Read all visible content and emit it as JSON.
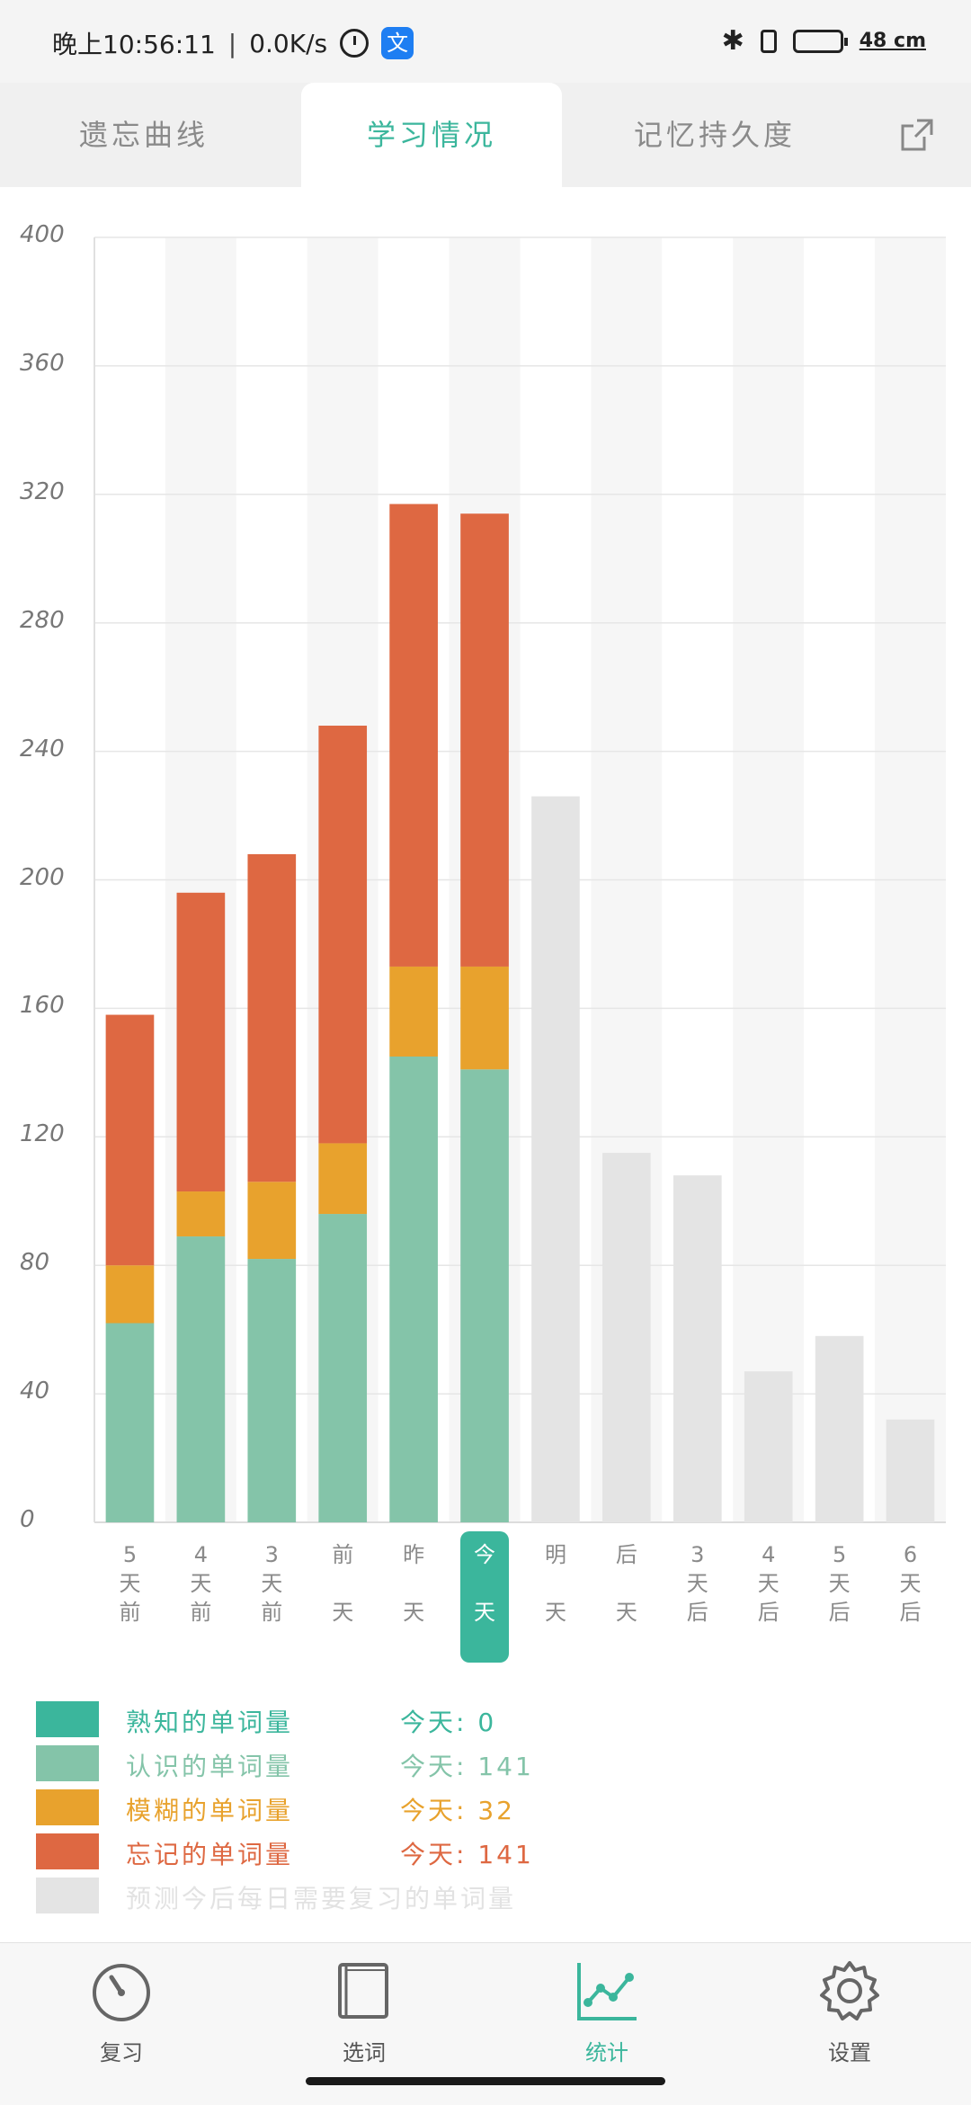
{
  "status_bar": {
    "time": "晚上10:56:11",
    "separator": "|",
    "net_speed": "0.0K/s",
    "app_badge": "文",
    "right_text": "48 cm"
  },
  "tabs": [
    {
      "label": "遗忘曲线",
      "active": false
    },
    {
      "label": "学习情况",
      "active": true
    },
    {
      "label": "记忆持久度",
      "active": false
    }
  ],
  "share_icon": "share-icon",
  "chart_data": {
    "type": "bar",
    "stacked": true,
    "ylim": [
      0,
      400
    ],
    "yticks": [
      0,
      40,
      80,
      120,
      160,
      200,
      240,
      280,
      320,
      360,
      400
    ],
    "categories": [
      [
        "5",
        "天",
        "前"
      ],
      [
        "4",
        "天",
        "前"
      ],
      [
        "3",
        "天",
        "前"
      ],
      [
        "前",
        "天"
      ],
      [
        "昨",
        "天"
      ],
      [
        "今",
        "天"
      ],
      [
        "明",
        "天"
      ],
      [
        "后",
        "天"
      ],
      [
        "3",
        "天",
        "后"
      ],
      [
        "4",
        "天",
        "后"
      ],
      [
        "5",
        "天",
        "后"
      ],
      [
        "6",
        "天",
        "后"
      ]
    ],
    "highlight_index": 5,
    "series": [
      {
        "name": "熟知的单词量",
        "color": "#3bb69c",
        "values": [
          0,
          0,
          0,
          0,
          0,
          0,
          0,
          0,
          0,
          0,
          0,
          0
        ]
      },
      {
        "name": "认识的单词量",
        "color": "#84c4a9",
        "values": [
          62,
          89,
          82,
          96,
          145,
          141,
          0,
          0,
          0,
          0,
          0,
          0
        ]
      },
      {
        "name": "模糊的单词量",
        "color": "#e8a22d",
        "values": [
          18,
          14,
          24,
          22,
          28,
          32,
          0,
          0,
          0,
          0,
          0,
          0
        ]
      },
      {
        "name": "忘记的单词量",
        "color": "#de6842",
        "values": [
          78,
          93,
          102,
          130,
          144,
          141,
          0,
          0,
          0,
          0,
          0,
          0
        ]
      },
      {
        "name": "预测今后每日需要复习的单词量",
        "color": "#e4e4e4",
        "values": [
          0,
          0,
          0,
          0,
          0,
          0,
          226,
          115,
          108,
          47,
          58,
          32
        ]
      }
    ]
  },
  "legend": [
    {
      "label": "熟知的单词量",
      "today": "今天: 0",
      "color": "#3bb69c"
    },
    {
      "label": "认识的单词量",
      "today": "今天: 141",
      "color": "#84c4a9"
    },
    {
      "label": "模糊的单词量",
      "today": "今天: 32",
      "color": "#e8a22d"
    },
    {
      "label": "忘记的单词量",
      "today": "今天: 141",
      "color": "#de6842"
    },
    {
      "label": "预测今后每日需要复习的单词量",
      "today": "",
      "color": "#e4e4e4"
    }
  ],
  "bottom_nav": [
    {
      "label": "复习",
      "icon": "gauge-icon",
      "active": false
    },
    {
      "label": "选词",
      "icon": "book-icon",
      "active": false
    },
    {
      "label": "统计",
      "icon": "line-chart-icon",
      "active": true
    },
    {
      "label": "设置",
      "icon": "gear-icon",
      "active": false
    }
  ]
}
